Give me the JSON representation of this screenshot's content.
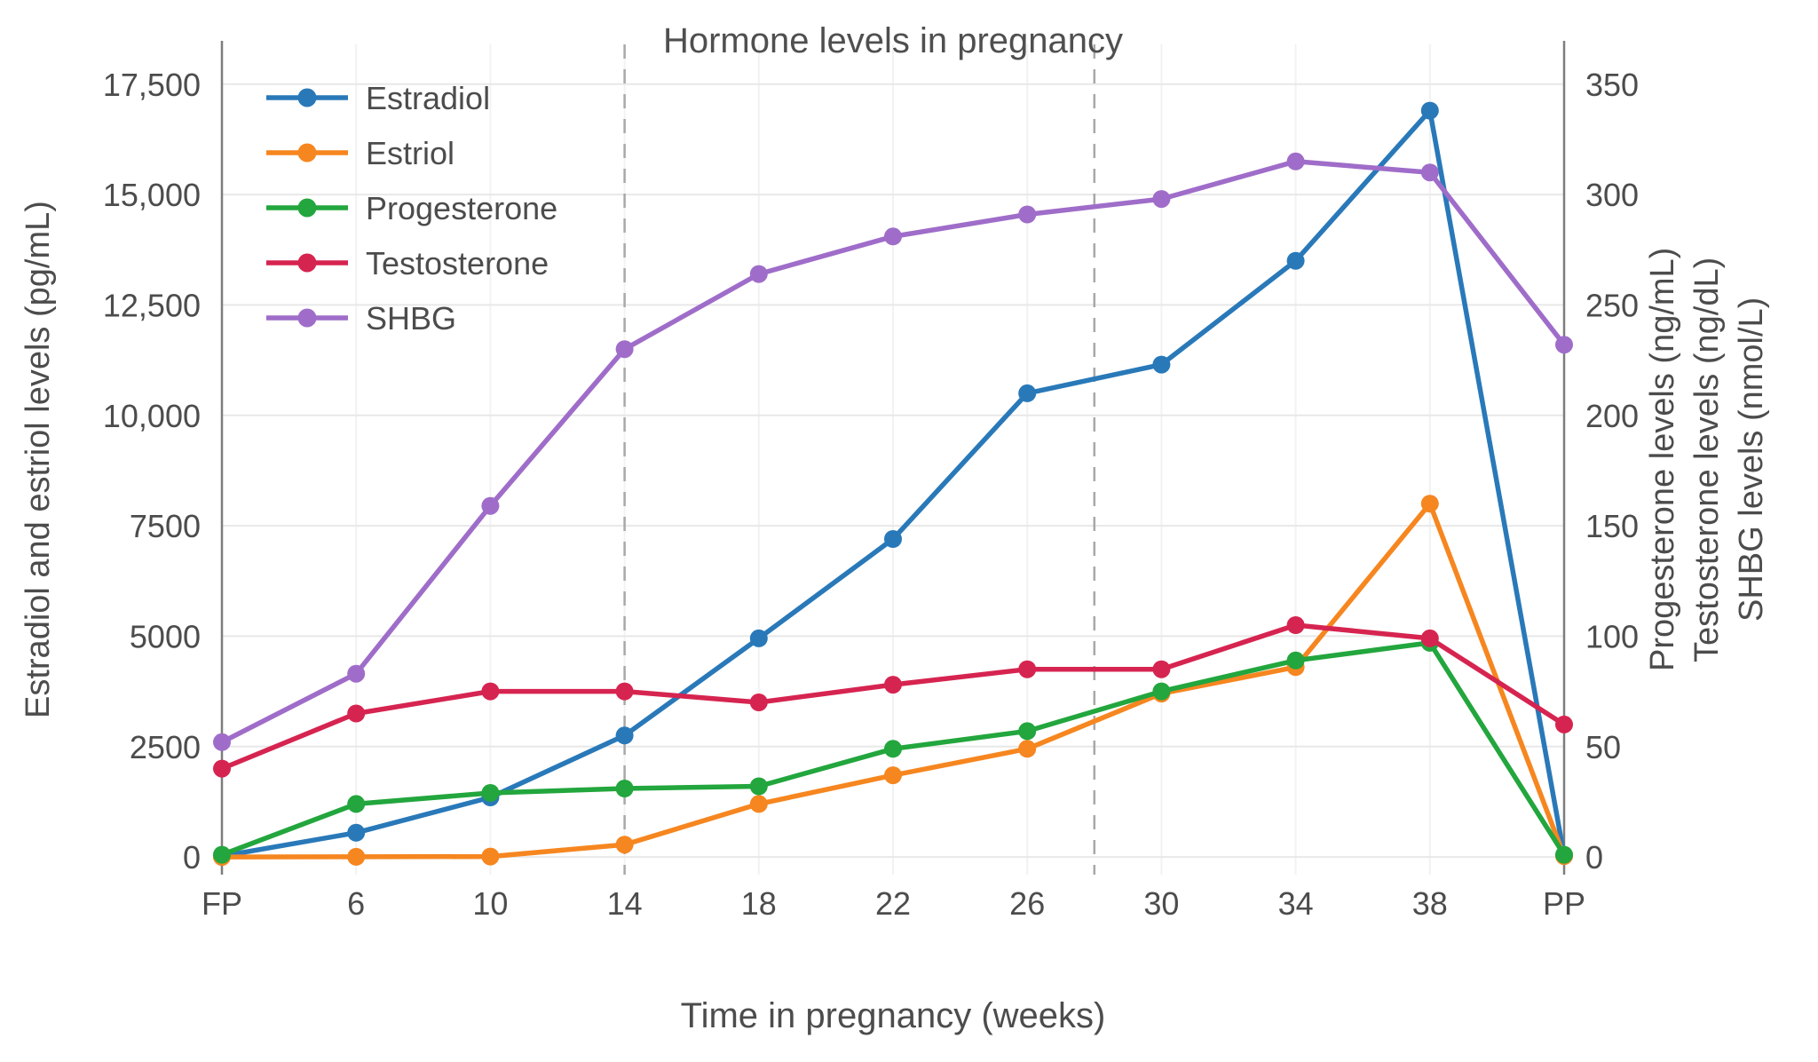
{
  "chart_data": {
    "type": "line",
    "title": "Hormone levels in pregnancy",
    "xlabel": "Time in pregnancy (weeks)",
    "ylabel_left": "Estradiol and estriol levels (pg/mL)",
    "ylabel_right": [
      "Progesterone levels (ng/mL)",
      "Testosterone levels (ng/dL)",
      "SHBG levels (nmol/L)"
    ],
    "categories": [
      "FP",
      "6",
      "10",
      "14",
      "18",
      "22",
      "26",
      "30",
      "34",
      "38",
      "PP"
    ],
    "left_axis": {
      "ticks": [
        0,
        2500,
        5000,
        7500,
        10000,
        12500,
        15000,
        17500
      ],
      "tick_labels": [
        "0",
        "2500",
        "5000",
        "7500",
        "10,000",
        "12,500",
        "15,000",
        "17,500"
      ],
      "range": [
        -400,
        18400
      ]
    },
    "right_axis": {
      "ticks": [
        0,
        50,
        100,
        150,
        200,
        250,
        300,
        350
      ],
      "tick_labels": [
        "0",
        "50",
        "100",
        "150",
        "200",
        "250",
        "300",
        "350"
      ],
      "scale_to_left": 50
    },
    "trimester_dividers_x": [
      3,
      6.5
    ],
    "grid": true,
    "legend_position": "top-left",
    "series": [
      {
        "name": "Estradiol",
        "axis": "left",
        "color": "#2979b9",
        "values": [
          20,
          550,
          1350,
          2750,
          4950,
          7200,
          10500,
          11150,
          13500,
          16900,
          30
        ]
      },
      {
        "name": "Estriol",
        "axis": "left",
        "color": "#f6861f",
        "values": [
          0,
          5,
          10,
          280,
          1200,
          1850,
          2450,
          3700,
          4300,
          8000,
          20
        ]
      },
      {
        "name": "Progesterone",
        "axis": "right",
        "color": "#22a63d",
        "values": [
          1,
          24,
          29,
          31,
          32,
          49,
          57,
          75,
          89,
          97,
          1
        ]
      },
      {
        "name": "Testosterone",
        "axis": "right",
        "color": "#d62450",
        "values": [
          40,
          65,
          75,
          75,
          70,
          78,
          85,
          85,
          105,
          99,
          60
        ]
      },
      {
        "name": "SHBG",
        "axis": "right",
        "color": "#9f6dc9",
        "values": [
          52,
          83,
          159,
          230,
          264,
          281,
          291,
          298,
          315,
          310,
          232
        ]
      }
    ],
    "style": {
      "gridline_color": "#e8e8e8",
      "faint_vline_color": "#f2f2f2",
      "dashed_line_color": "#a8a8a8",
      "frame_line_color": "#7d7d7d",
      "text_color": "#4c4c4c"
    }
  }
}
